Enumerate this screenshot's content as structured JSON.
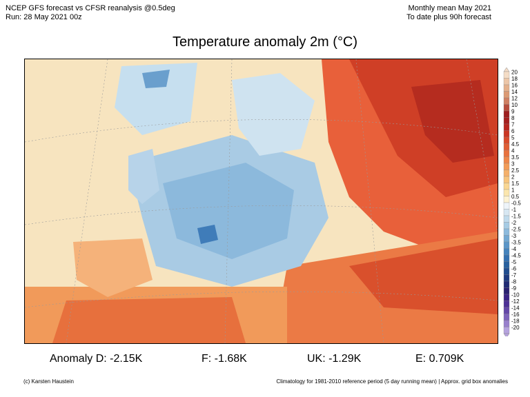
{
  "header": {
    "line1_left": "NCEP GFS forecast vs CFSR reanalysis @0.5deg",
    "line2_left": "Run: 28 May 2021 00z",
    "line1_right": "Monthly mean May 2021",
    "line2_right": "To date plus 90h forecast"
  },
  "title": "Temperature anomaly 2m (°C)",
  "colorbar": {
    "levels": [
      "20",
      "18",
      "16",
      "14",
      "12",
      "10",
      "9",
      "8",
      "7",
      "6",
      "5",
      "4.5",
      "4",
      "3.5",
      "3",
      "2.5",
      "2",
      "1.5",
      "1",
      "0.5",
      "-0.5",
      "-1",
      "-1.5",
      "-2",
      "-2.5",
      "-3",
      "-3.5",
      "-4",
      "-4.5",
      "-5",
      "-6",
      "-7",
      "-8",
      "-9",
      "-10",
      "-12",
      "-14",
      "-16",
      "-18",
      "-20"
    ],
    "colors": [
      "#f4dcc6",
      "#ecc6a8",
      "#e4b08c",
      "#dc9a74",
      "#cf7f62",
      "#b74c3c",
      "#9e1f1f",
      "#a5201f",
      "#b8261f",
      "#ca3623",
      "#d84a2b",
      "#e05d34",
      "#e8713d",
      "#ee8649",
      "#f29b57",
      "#f5b06a",
      "#f7c47d",
      "#f9d693",
      "#fbe6ad",
      "#fdf3d3",
      "#eef4f9",
      "#d7e7f2",
      "#c0daec",
      "#a6cbe4",
      "#8cbadc",
      "#72a8d2",
      "#5b96c8",
      "#4583bd",
      "#3470b0",
      "#28609f",
      "#214d8f",
      "#1e3b80",
      "#212c74",
      "#2a2170",
      "#3a2385",
      "#4d3196",
      "#6447a8",
      "#7d62bb",
      "#9880cc",
      "#b6a3de"
    ]
  },
  "stats": {
    "anomaly_d": "Anomaly D: -2.15K",
    "f": "F: -1.68K",
    "uk": "UK: -1.29K",
    "e": "E: 0.709K"
  },
  "footer": {
    "left": "(c) Karsten Haustein",
    "right": "Climatology for 1981-2010 reference period (5 day running mean) | Approx. grid box anomalies"
  }
}
